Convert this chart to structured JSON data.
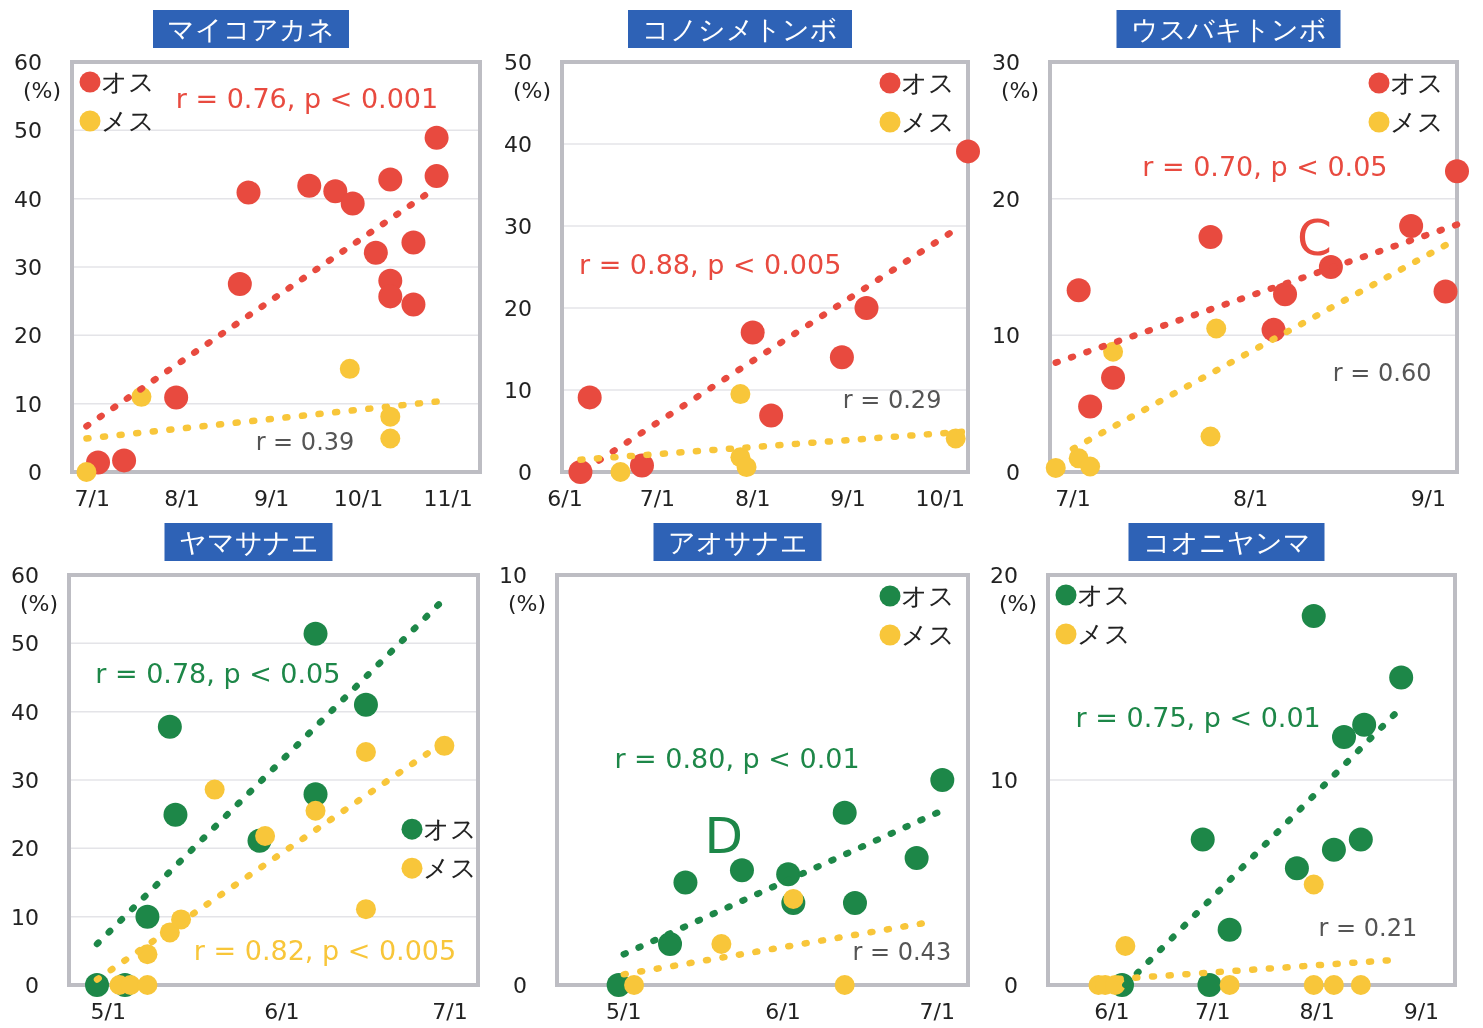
{
  "chart_data": [
    {
      "type": "scatter",
      "title": "マイコアカネ",
      "ylabel": "(%)",
      "xlim": [
        "--06-24",
        "--11-12"
      ],
      "ylim": [
        0,
        60
      ],
      "xticks": [
        {
          "value": "--07-01",
          "label": "7/1"
        },
        {
          "value": "--08-01",
          "label": "8/1"
        },
        {
          "value": "--09-01",
          "label": "9/1"
        },
        {
          "value": "--10-01",
          "label": "10/1"
        },
        {
          "value": "--11-01",
          "label": "11/1"
        }
      ],
      "yticks": [
        0,
        10,
        20,
        30,
        40,
        50,
        60
      ],
      "grid": "y",
      "legend": "top left",
      "marker": "circle",
      "annotations": [
        "r = 0.76, p < 0.001",
        "r = 0.39"
      ],
      "series": [
        {
          "type": "line",
          "line_style": "dotted",
          "marker": "none",
          "color": "#e84a3f",
          "x": [
            "--06-29",
            "--10-24"
          ],
          "values": [
            6.7,
            40.5
          ]
        },
        {
          "type": "line",
          "line_style": "dotted",
          "marker": "none",
          "color": "#f8c63a",
          "x": [
            "--06-29",
            "--10-28"
          ],
          "values": [
            4.9,
            10.3
          ]
        },
        {
          "name": "オス",
          "color": "#e84a3f",
          "x": [
            "--07-03",
            "--07-12",
            "--07-30",
            "--08-21",
            "--08-24",
            "--09-14",
            "--09-23",
            "--09-29",
            "--10-07",
            "--10-12",
            "--10-12",
            "--10-12",
            "--10-20",
            "--10-20",
            "--10-28",
            "--10-28"
          ],
          "values": [
            1.4,
            1.7,
            10.9,
            27.5,
            40.9,
            41.9,
            41.1,
            39.3,
            32.1,
            42.8,
            28.0,
            25.7,
            33.6,
            24.5,
            48.9,
            43.3
          ]
        },
        {
          "name": "メス",
          "color": "#f8c63a",
          "x": [
            "--06-29",
            "--07-18",
            "--09-28",
            "--10-12",
            "--10-12"
          ],
          "values": [
            0,
            11.0,
            15.1,
            8.1,
            4.9
          ]
        }
      ]
    },
    {
      "type": "scatter",
      "title": "コノシメトンボ",
      "ylabel": "(%)",
      "xlim": [
        "--05-31",
        "--10-10"
      ],
      "ylim": [
        0,
        50
      ],
      "xticks": [
        {
          "value": "--06-01",
          "label": "6/1"
        },
        {
          "value": "--07-01",
          "label": "7/1"
        },
        {
          "value": "--08-01",
          "label": "8/1"
        },
        {
          "value": "--09-01",
          "label": "9/1"
        },
        {
          "value": "--10-01",
          "label": "10/1"
        }
      ],
      "yticks": [
        0,
        10,
        20,
        30,
        40,
        50
      ],
      "grid": "y",
      "legend": "top right",
      "marker": "circle",
      "annotations": [
        "r = 0.88, p < 0.005",
        "r = 0.29"
      ],
      "series": [
        {
          "type": "line",
          "line_style": "dotted",
          "marker": "none",
          "color": "#e84a3f",
          "x": [
            "--06-12",
            "--10-04"
          ],
          "values": [
            1.4,
            29.1
          ]
        },
        {
          "type": "line",
          "line_style": "dotted",
          "marker": "none",
          "color": "#f8c63a",
          "x": [
            "--06-06",
            "--10-08"
          ],
          "values": [
            1.5,
            4.9
          ]
        },
        {
          "name": "オス",
          "color": "#e84a3f",
          "x": [
            "--06-06",
            "--06-09",
            "--06-26",
            "--08-01",
            "--08-07",
            "--08-30",
            "--09-07",
            "--10-10"
          ],
          "values": [
            0,
            9.1,
            0.8,
            17.0,
            6.9,
            14.0,
            20.0,
            39.1
          ]
        },
        {
          "name": "メス",
          "color": "#f8c63a",
          "x": [
            "--06-19",
            "--07-28",
            "--07-28",
            "--07-30",
            "--10-06"
          ],
          "values": [
            0,
            9.5,
            1.8,
            0.6,
            4.1
          ]
        }
      ]
    },
    {
      "type": "scatter",
      "title": "ウスバキトンボ",
      "ylabel": "(%)",
      "xlim": [
        "--06-27",
        "--09-06"
      ],
      "ylim": [
        0,
        30
      ],
      "xticks": [
        {
          "value": "--07-01",
          "label": "7/1"
        },
        {
          "value": "--08-01",
          "label": "8/1"
        },
        {
          "value": "--09-01",
          "label": "9/1"
        }
      ],
      "yticks": [
        0,
        10,
        20,
        30
      ],
      "grid": "y",
      "legend": "top right",
      "marker": "circle",
      "annotations": [
        "r = 0.70, p < 0.05",
        "C",
        "r = 0.60"
      ],
      "series": [
        {
          "type": "line",
          "line_style": "dotted",
          "marker": "none",
          "color": "#e84a3f",
          "x": [
            "--06-28",
            "--09-06"
          ],
          "values": [
            8.0,
            18.1
          ]
        },
        {
          "type": "line",
          "line_style": "dotted",
          "marker": "none",
          "color": "#f8c63a",
          "x": [
            "--07-01",
            "--09-04"
          ],
          "values": [
            1.7,
            16.6
          ]
        },
        {
          "name": "オス",
          "color": "#e84a3f",
          "x": [
            "--07-02",
            "--07-08",
            "--07-04",
            "--07-25",
            "--08-05",
            "--08-07",
            "--08-15",
            "--08-29",
            "--09-04",
            "--09-06"
          ],
          "values": [
            13.3,
            6.9,
            4.8,
            17.2,
            10.4,
            13.0,
            15.0,
            18.0,
            13.2,
            22.0
          ]
        },
        {
          "name": "メス",
          "color": "#f8c63a",
          "x": [
            "--06-28",
            "--07-02",
            "--07-04",
            "--07-08",
            "--07-26",
            "--07-25"
          ],
          "values": [
            0.3,
            1.0,
            0.4,
            8.8,
            10.5,
            2.6
          ]
        }
      ]
    },
    {
      "type": "scatter",
      "title": "ヤマサナエ",
      "ylabel": "(%)",
      "xlim": [
        "--04-24",
        "--07-06"
      ],
      "ylim": [
        0,
        60
      ],
      "xticks": [
        {
          "value": "--05-01",
          "label": "5/1"
        },
        {
          "value": "--06-01",
          "label": "6/1"
        },
        {
          "value": "--07-01",
          "label": "7/1"
        }
      ],
      "yticks": [
        0,
        10,
        20,
        30,
        40,
        50,
        60
      ],
      "grid": "y",
      "legend": "right",
      "marker": "circle",
      "annotations": [
        "r = 0.78, p < 0.05",
        "r = 0.82, p < 0.005"
      ],
      "series": [
        {
          "type": "line",
          "line_style": "dotted",
          "marker": "none",
          "color": "#1d8748",
          "x": [
            "--04-29",
            "--06-29"
          ],
          "values": [
            6.0,
            55.7
          ]
        },
        {
          "type": "line",
          "line_style": "dotted",
          "marker": "none",
          "color": "#f8c63a",
          "x": [
            "--04-29",
            "--06-27"
          ],
          "values": [
            0.8,
            33.9
          ]
        },
        {
          "name": "オス",
          "color": "#1d8748",
          "x": [
            "--04-29",
            "--05-04",
            "--05-08",
            "--05-12",
            "--05-13",
            "--05-28",
            "--06-07",
            "--06-07",
            "--06-16"
          ],
          "values": [
            0,
            0,
            10.0,
            37.8,
            24.9,
            21.1,
            27.9,
            51.4,
            41.0
          ]
        },
        {
          "name": "メス",
          "color": "#f8c63a",
          "x": [
            "--05-03",
            "--05-05",
            "--05-08",
            "--05-08",
            "--05-12",
            "--05-14",
            "--05-20",
            "--05-29",
            "--06-07",
            "--06-16",
            "--06-16",
            "--06-30"
          ],
          "values": [
            0,
            0,
            0,
            4.5,
            7.7,
            9.6,
            28.6,
            21.8,
            25.5,
            34.1,
            11.1,
            35.0
          ]
        }
      ]
    },
    {
      "type": "scatter",
      "title": "アオサナエ",
      "ylabel": "(%)",
      "xlim": [
        "--04-18",
        "--07-07"
      ],
      "ylim": [
        0,
        10
      ],
      "xticks": [
        {
          "value": "--05-01",
          "label": "5/1"
        },
        {
          "value": "--06-01",
          "label": "6/1"
        },
        {
          "value": "--07-01",
          "label": "7/1"
        }
      ],
      "yticks": [
        0,
        10
      ],
      "grid": "y",
      "legend": "top right",
      "marker": "circle",
      "annotations": [
        "r = 0.80, p < 0.01",
        "D",
        "r = 0.43"
      ],
      "series": [
        {
          "type": "line",
          "line_style": "dotted",
          "marker": "none",
          "color": "#1d8748",
          "x": [
            "--05-01",
            "--07-01"
          ],
          "values": [
            0.75,
            4.2
          ]
        },
        {
          "type": "line",
          "line_style": "dotted",
          "marker": "none",
          "color": "#f8c63a",
          "x": [
            "--05-01",
            "--06-28"
          ],
          "values": [
            0.26,
            1.5
          ]
        },
        {
          "name": "オス",
          "color": "#1d8748",
          "x": [
            "--04-30",
            "--05-10",
            "--05-13",
            "--05-24",
            "--06-02",
            "--06-03",
            "--06-13",
            "--06-15",
            "--06-27",
            "--07-02"
          ],
          "values": [
            0,
            1.0,
            2.5,
            2.8,
            2.7,
            2.0,
            4.2,
            2.0,
            3.1,
            5.0
          ]
        },
        {
          "name": "メス",
          "color": "#f8c63a",
          "x": [
            "--05-03",
            "--05-20",
            "--06-03",
            "--06-13"
          ],
          "values": [
            0,
            1.0,
            2.1,
            0
          ]
        }
      ]
    },
    {
      "type": "scatter",
      "title": "コオニヤンマ",
      "ylabel": "(%)",
      "xlim": [
        "--05-13",
        "--09-11"
      ],
      "ylim": [
        0,
        20
      ],
      "xticks": [
        {
          "value": "--06-01",
          "label": "6/1"
        },
        {
          "value": "--07-01",
          "label": "7/1"
        },
        {
          "value": "--08-01",
          "label": "8/1"
        },
        {
          "value": "--09-01",
          "label": "9/1"
        }
      ],
      "yticks": [
        0,
        10,
        20
      ],
      "grid": "y",
      "legend": "top left",
      "marker": "circle",
      "annotations": [
        "r = 0.75, p < 0.01",
        "r = 0.21"
      ],
      "series": [
        {
          "type": "line",
          "line_style": "dotted",
          "marker": "none",
          "color": "#1d8748",
          "x": [
            "--06-05",
            "--08-24"
          ],
          "values": [
            0,
            13.2
          ]
        },
        {
          "type": "line",
          "line_style": "dotted",
          "marker": "none",
          "color": "#f8c63a",
          "x": [
            "--06-03",
            "--08-22"
          ],
          "values": [
            0.3,
            1.2
          ]
        },
        {
          "name": "オス",
          "color": "#1d8748",
          "x": [
            "--06-04",
            "--06-28",
            "--07-06",
            "--06-30",
            "--07-26",
            "--07-31",
            "--08-06",
            "--08-09",
            "--08-14",
            "--08-15",
            "--08-26"
          ],
          "values": [
            0,
            7.1,
            2.7,
            0,
            5.7,
            18.0,
            6.6,
            12.1,
            7.1,
            12.7,
            15.0
          ]
        },
        {
          "name": "メス",
          "color": "#f8c63a",
          "x": [
            "--05-28",
            "--05-30",
            "--06-02",
            "--06-05",
            "--07-06",
            "--07-31",
            "--07-31",
            "--08-06",
            "--08-14"
          ],
          "values": [
            0,
            0,
            0,
            1.9,
            0,
            4.9,
            0,
            0,
            0
          ]
        }
      ]
    }
  ]
}
